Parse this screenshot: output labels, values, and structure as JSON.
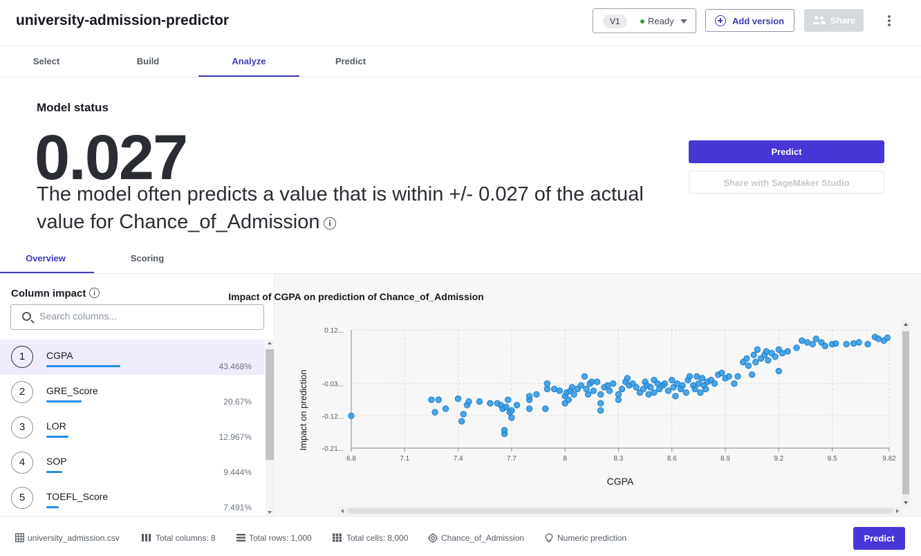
{
  "header": {
    "title": "university-admission-predictor",
    "version": {
      "label": "V1",
      "status": "Ready"
    },
    "add_version_label": "Add version",
    "share_label": "Share"
  },
  "tabs": [
    {
      "label": "Select",
      "active": false
    },
    {
      "label": "Build",
      "active": false
    },
    {
      "label": "Analyze",
      "active": true
    },
    {
      "label": "Predict",
      "active": false
    }
  ],
  "model_status": {
    "heading": "Model status",
    "metric": "0.027",
    "description": "The model often predicts a value that is within +/- 0.027 of the actual value for Chance_of_Admission",
    "predict_label": "Predict",
    "share_studio_label": "Share with SageMaker Studio"
  },
  "subtabs": [
    {
      "label": "Overview",
      "active": true
    },
    {
      "label": "Scoring",
      "active": false
    }
  ],
  "column_impact": {
    "title": "Column impact",
    "search_placeholder": "Search columns...",
    "items": [
      {
        "rank": "1",
        "name": "CGPA",
        "percent": "43.468%",
        "value": 43.468,
        "selected": true
      },
      {
        "rank": "2",
        "name": "GRE_Score",
        "percent": "20.67%",
        "value": 20.67,
        "selected": false
      },
      {
        "rank": "3",
        "name": "LOR",
        "percent": "12.967%",
        "value": 12.967,
        "selected": false
      },
      {
        "rank": "4",
        "name": "SOP",
        "percent": "9.444%",
        "value": 9.444,
        "selected": false
      },
      {
        "rank": "5",
        "name": "TOEFL_Score",
        "percent": "7.491%",
        "value": 7.491,
        "selected": false
      }
    ]
  },
  "chart_data": {
    "type": "scatter",
    "title": "Impact of CGPA on prediction of Chance_of_Admission",
    "xlabel": "CGPA",
    "ylabel": "Impact on prediction",
    "xticks": [
      "6.8",
      "7.1",
      "7.4",
      "7.7",
      "8",
      "8.3",
      "8.6",
      "8.9",
      "9.2",
      "9.5",
      "9.82"
    ],
    "yticks": [
      "0.12...",
      "-0.03...",
      "-0.12...",
      "-0.21..."
    ],
    "xlim": [
      6.8,
      9.82
    ],
    "ylim": [
      -0.21,
      0.12
    ],
    "grid": true,
    "color": "#2f97e0",
    "points": [
      [
        6.8,
        -0.12
      ],
      [
        7.25,
        -0.075
      ],
      [
        7.27,
        -0.11
      ],
      [
        7.29,
        -0.075
      ],
      [
        7.33,
        -0.1
      ],
      [
        7.4,
        -0.072
      ],
      [
        7.42,
        -0.135
      ],
      [
        7.43,
        -0.115
      ],
      [
        7.45,
        -0.09
      ],
      [
        7.46,
        -0.08
      ],
      [
        7.52,
        -0.08
      ],
      [
        7.58,
        -0.085
      ],
      [
        7.62,
        -0.085
      ],
      [
        7.64,
        -0.09
      ],
      [
        7.65,
        -0.1
      ],
      [
        7.66,
        -0.17
      ],
      [
        7.66,
        -0.16
      ],
      [
        7.67,
        -0.095
      ],
      [
        7.68,
        -0.075
      ],
      [
        7.69,
        -0.11
      ],
      [
        7.7,
        -0.105
      ],
      [
        7.7,
        -0.125
      ],
      [
        7.73,
        -0.09
      ],
      [
        7.8,
        -0.1
      ],
      [
        7.8,
        -0.075
      ],
      [
        7.8,
        -0.065
      ],
      [
        7.84,
        -0.06
      ],
      [
        7.89,
        -0.1
      ],
      [
        7.9,
        -0.045
      ],
      [
        7.9,
        -0.03
      ],
      [
        7.94,
        -0.045
      ],
      [
        7.97,
        -0.05
      ],
      [
        8,
        -0.085
      ],
      [
        8.0,
        -0.065
      ],
      [
        8.01,
        -0.055
      ],
      [
        8.02,
        -0.075
      ],
      [
        8.03,
        -0.05
      ],
      [
        8.04,
        -0.04
      ],
      [
        8.05,
        -0.06
      ],
      [
        8.07,
        -0.045
      ],
      [
        8.09,
        -0.035
      ],
      [
        8.11,
        -0.01
      ],
      [
        8.12,
        -0.045
      ],
      [
        8.13,
        -0.06
      ],
      [
        8.14,
        -0.03
      ],
      [
        8.15,
        -0.025
      ],
      [
        8.16,
        -0.05
      ],
      [
        8.18,
        -0.025
      ],
      [
        8.2,
        -0.06
      ],
      [
        8.2,
        -0.085
      ],
      [
        8.2,
        -0.105
      ],
      [
        8.22,
        -0.04
      ],
      [
        8.24,
        -0.035
      ],
      [
        8.25,
        -0.05
      ],
      [
        8.27,
        -0.03
      ],
      [
        8.3,
        -0.06
      ],
      [
        8.3,
        -0.075
      ],
      [
        8.32,
        -0.045
      ],
      [
        8.34,
        -0.025
      ],
      [
        8.35,
        -0.015
      ],
      [
        8.36,
        -0.035
      ],
      [
        8.38,
        -0.03
      ],
      [
        8.4,
        -0.04
      ],
      [
        8.42,
        -0.055
      ],
      [
        8.44,
        -0.045
      ],
      [
        8.45,
        -0.025
      ],
      [
        8.46,
        -0.035
      ],
      [
        8.47,
        -0.06
      ],
      [
        8.48,
        -0.04
      ],
      [
        8.5,
        -0.02
      ],
      [
        8.5,
        -0.055
      ],
      [
        8.52,
        -0.03
      ],
      [
        8.53,
        -0.045
      ],
      [
        8.55,
        -0.035
      ],
      [
        8.56,
        -0.03
      ],
      [
        8.58,
        -0.05
      ],
      [
        8.6,
        -0.02
      ],
      [
        8.61,
        -0.04
      ],
      [
        8.62,
        -0.065
      ],
      [
        8.63,
        -0.03
      ],
      [
        8.65,
        -0.045
      ],
      [
        8.66,
        -0.035
      ],
      [
        8.68,
        -0.055
      ],
      [
        8.69,
        -0.02
      ],
      [
        8.7,
        -0.01
      ],
      [
        8.72,
        -0.035
      ],
      [
        8.73,
        -0.045
      ],
      [
        8.74,
        -0.01
      ],
      [
        8.75,
        -0.03
      ],
      [
        8.76,
        -0.055
      ],
      [
        8.77,
        -0.015
      ],
      [
        8.78,
        -0.035
      ],
      [
        8.79,
        -0.045
      ],
      [
        8.8,
        -0.025
      ],
      [
        8.82,
        -0.02
      ],
      [
        8.84,
        -0.03
      ],
      [
        8.86,
        -0.005
      ],
      [
        8.88,
        0.0
      ],
      [
        8.9,
        -0.015
      ],
      [
        8.92,
        -0.01
      ],
      [
        8.95,
        -0.03
      ],
      [
        8.97,
        -0.01
      ],
      [
        9.0,
        0.03
      ],
      [
        9.02,
        0.04
      ],
      [
        9.03,
        0.02
      ],
      [
        9.05,
        -0.005
      ],
      [
        9.06,
        0.05
      ],
      [
        9.07,
        0.03
      ],
      [
        9.08,
        0.065
      ],
      [
        9.1,
        0.04
      ],
      [
        9.12,
        0.05
      ],
      [
        9.13,
        0.06
      ],
      [
        9.14,
        0.035
      ],
      [
        9.16,
        0.055
      ],
      [
        9.18,
        0.045
      ],
      [
        9.2,
        0.065
      ],
      [
        9.2,
        0.005
      ],
      [
        9.22,
        0.055
      ],
      [
        9.25,
        0.06
      ],
      [
        9.3,
        0.07
      ],
      [
        9.33,
        0.09
      ],
      [
        9.36,
        0.085
      ],
      [
        9.39,
        0.08
      ],
      [
        9.41,
        0.095
      ],
      [
        9.44,
        0.085
      ],
      [
        9.46,
        0.075
      ],
      [
        9.5,
        0.08
      ],
      [
        9.52,
        0.082
      ],
      [
        9.58,
        0.08
      ],
      [
        9.62,
        0.082
      ],
      [
        9.65,
        0.085
      ],
      [
        9.7,
        0.08
      ],
      [
        9.74,
        0.1
      ],
      [
        9.76,
        0.095
      ],
      [
        9.79,
        0.09
      ],
      [
        9.81,
        0.098
      ]
    ]
  },
  "footer": {
    "dataset": "university_admission.csv",
    "total_columns": "Total columns: 8",
    "total_rows": "Total rows: 1,000",
    "total_cells": "Total cells: 8,000",
    "target": "Chance_of_Admission",
    "problem_type": "Numeric prediction",
    "predict_label": "Predict"
  }
}
